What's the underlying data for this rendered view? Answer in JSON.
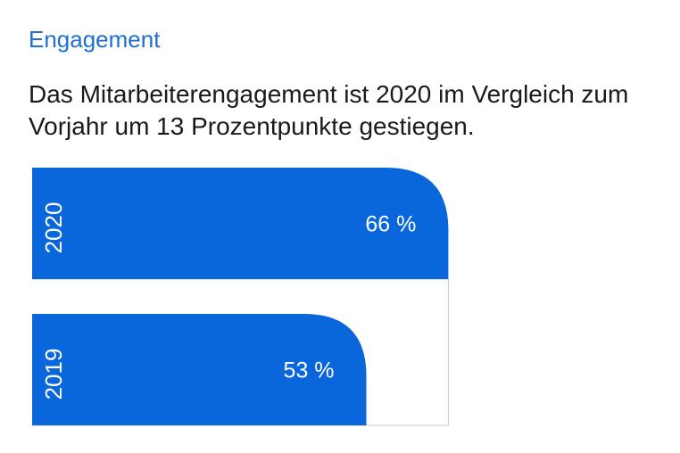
{
  "header": {
    "title": "Engagement",
    "description": "Das Mitarbeiterengagement ist 2020 im Vergleich zum Vorjahr um 13 Prozentpunkte gestiegen."
  },
  "colors": {
    "bar": "#0a66db",
    "title": "#1e6fd0",
    "text": "#1a1a1a",
    "bar_label": "#ffffff",
    "frame": "#c8c8c8"
  },
  "chart_data": {
    "type": "bar",
    "orientation": "horizontal",
    "categories": [
      "2020",
      "2019"
    ],
    "values": [
      66,
      53
    ],
    "value_labels": [
      "66 %",
      "53 %"
    ],
    "unit": "%",
    "xlim": [
      0,
      75
    ],
    "grid": false,
    "legend": "none"
  }
}
